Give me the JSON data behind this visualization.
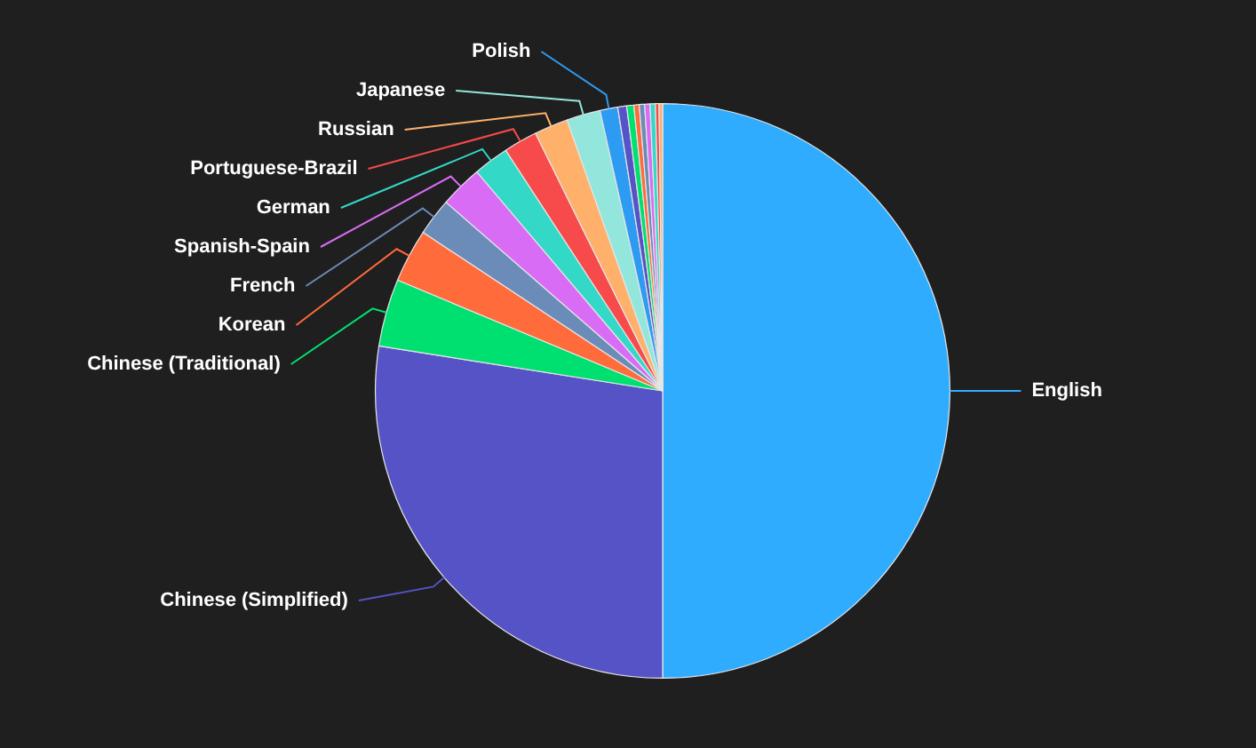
{
  "chart_data": {
    "type": "pie",
    "categories": [
      "English",
      "Chinese (Simplified)",
      "Chinese (Traditional)",
      "Korean",
      "French",
      "Spanish-Spain",
      "German",
      "Portuguese-Brazil",
      "Russian",
      "Japanese",
      "Polish",
      null,
      null,
      null,
      null,
      null,
      null,
      null,
      null
    ],
    "values": [
      50,
      27.5,
      3.8,
      3.0,
      2.1,
      2.4,
      2.0,
      1.9,
      1.9,
      1.9,
      1.0,
      0.5,
      0.4,
      0.3,
      0.3,
      0.3,
      0.3,
      0.2,
      0.2
    ],
    "colors": [
      "#30acff",
      "#5553c6",
      "#00e070",
      "#ff6b3b",
      "#6b8bb8",
      "#d96cf5",
      "#33d9c6",
      "#f74a4a",
      "#ffb06b",
      "#92e6db",
      "#2e9bf2",
      "#5553c6",
      "#00e070",
      "#ff6b3b",
      "#6b8bb8",
      "#d96cf5",
      "#33d9c6",
      "#f74a4a",
      "#ffb06b"
    ],
    "legend": false
  }
}
